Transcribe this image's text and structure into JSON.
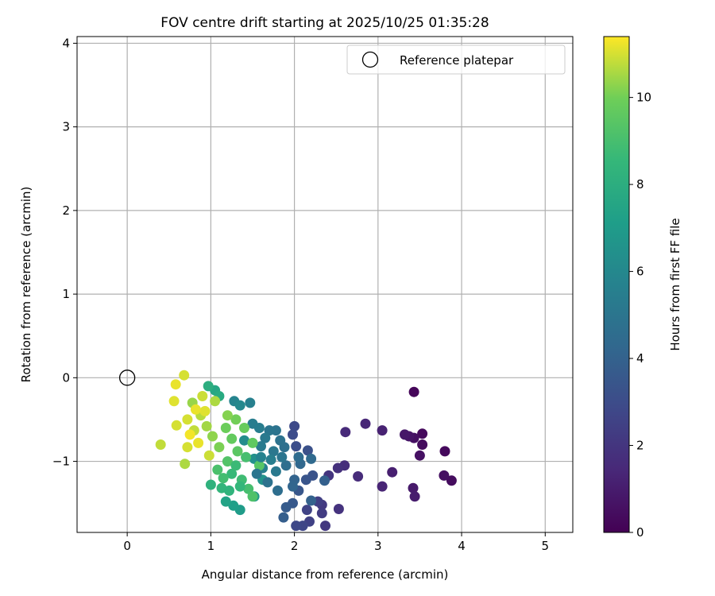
{
  "chart_data": {
    "type": "scatter",
    "title": "FOV centre drift starting at 2025/10/25 01:35:28",
    "xlabel": "Angular distance from reference (arcmin)",
    "ylabel": "Rotation from reference (arcmin)",
    "xlim": [
      -0.6,
      5.33
    ],
    "ylim": [
      -1.85,
      4.08
    ],
    "xticks": [
      0,
      1,
      2,
      3,
      4,
      5
    ],
    "yticks": [
      -1,
      0,
      1,
      2,
      3,
      4
    ],
    "xtick_labels": [
      "0",
      "1",
      "2",
      "3",
      "4",
      "5"
    ],
    "ytick_labels": [
      "−1",
      "0",
      "1",
      "2",
      "3",
      "4"
    ],
    "grid": true,
    "legend": {
      "placement": "top-right",
      "entries": [
        "Reference platepar"
      ]
    },
    "reference_point": {
      "x": 0,
      "y": 0,
      "label": "Reference platepar"
    },
    "colorbar": {
      "label": "Hours from first FF file",
      "colormap": "viridis",
      "range": [
        0,
        11.4
      ],
      "ticks": [
        0,
        2,
        4,
        6,
        8,
        10
      ],
      "tick_labels": [
        "0",
        "2",
        "4",
        "6",
        "8",
        "10"
      ]
    },
    "points": [
      [
        3.43,
        -0.17,
        0.2
      ],
      [
        3.8,
        -0.88,
        0.3
      ],
      [
        3.88,
        -1.23,
        0.4
      ],
      [
        3.79,
        -1.17,
        0.5
      ],
      [
        3.53,
        -0.67,
        0.3
      ],
      [
        3.53,
        -0.8,
        0.4
      ],
      [
        3.43,
        -0.72,
        0.5
      ],
      [
        3.5,
        -0.93,
        0.6
      ],
      [
        3.37,
        -0.7,
        0.7
      ],
      [
        3.32,
        -0.68,
        0.8
      ],
      [
        3.42,
        -1.32,
        0.9
      ],
      [
        3.44,
        -1.42,
        1.0
      ],
      [
        3.17,
        -1.13,
        1.1
      ],
      [
        3.05,
        -0.63,
        1.2
      ],
      [
        3.05,
        -1.3,
        1.3
      ],
      [
        2.85,
        -0.55,
        1.4
      ],
      [
        2.61,
        -0.65,
        1.5
      ],
      [
        2.76,
        -1.18,
        1.6
      ],
      [
        2.6,
        -1.05,
        1.7
      ],
      [
        2.52,
        -1.08,
        1.8
      ],
      [
        2.53,
        -1.57,
        1.9
      ],
      [
        2.41,
        -1.17,
        2.0
      ],
      [
        2.37,
        -1.77,
        2.1
      ],
      [
        2.33,
        -1.52,
        2.2
      ],
      [
        2.33,
        -1.62,
        2.3
      ],
      [
        2.28,
        -1.48,
        2.4
      ],
      [
        2.18,
        -1.72,
        2.5
      ],
      [
        2.15,
        -1.58,
        2.6
      ],
      [
        2.1,
        -1.77,
        2.7
      ],
      [
        2.02,
        -1.77,
        2.8
      ],
      [
        2.0,
        -0.58,
        2.9
      ],
      [
        1.98,
        -0.68,
        3.0
      ],
      [
        2.02,
        -0.82,
        3.1
      ],
      [
        2.16,
        -0.87,
        3.2
      ],
      [
        2.22,
        -1.17,
        3.3
      ],
      [
        2.14,
        -1.22,
        3.4
      ],
      [
        2.05,
        -1.35,
        3.5
      ],
      [
        1.98,
        -1.5,
        3.6
      ],
      [
        1.9,
        -1.55,
        3.7
      ],
      [
        1.87,
        -1.67,
        3.8
      ],
      [
        2.36,
        -1.23,
        3.9
      ],
      [
        2.2,
        -1.47,
        4.0
      ],
      [
        2.0,
        -1.22,
        4.1
      ],
      [
        1.98,
        -1.3,
        4.2
      ],
      [
        2.07,
        -1.03,
        4.3
      ],
      [
        2.2,
        -0.97,
        4.4
      ],
      [
        2.05,
        -0.95,
        4.5
      ],
      [
        1.9,
        -1.05,
        4.6
      ],
      [
        1.88,
        -0.83,
        4.7
      ],
      [
        1.83,
        -0.75,
        4.8
      ],
      [
        1.78,
        -0.63,
        4.9
      ],
      [
        1.7,
        -0.63,
        5.0
      ],
      [
        1.75,
        -0.88,
        5.1
      ],
      [
        1.65,
        -0.72,
        5.2
      ],
      [
        1.6,
        -0.82,
        5.3
      ],
      [
        1.58,
        -0.6,
        5.4
      ],
      [
        1.72,
        -0.98,
        5.5
      ],
      [
        1.62,
        -1.08,
        5.6
      ],
      [
        1.5,
        -0.55,
        5.4
      ],
      [
        1.47,
        -0.3,
        5.6
      ],
      [
        1.28,
        -0.28,
        5.8
      ],
      [
        1.35,
        -0.33,
        6.0
      ],
      [
        1.4,
        -0.75,
        6.2
      ],
      [
        1.52,
        -0.97,
        6.4
      ],
      [
        1.62,
        -1.22,
        6.6
      ],
      [
        1.52,
        -1.42,
        6.8
      ],
      [
        1.35,
        -1.58,
        7.0
      ],
      [
        1.27,
        -1.53,
        7.2
      ],
      [
        1.18,
        -1.48,
        7.4
      ],
      [
        1.05,
        -0.15,
        7.6
      ],
      [
        1.1,
        -0.22,
        7.8
      ],
      [
        0.97,
        -0.1,
        8.0
      ],
      [
        1.0,
        -1.28,
        8.2
      ],
      [
        1.13,
        -1.32,
        8.4
      ],
      [
        1.25,
        -1.15,
        8.6
      ],
      [
        1.37,
        -1.22,
        8.8
      ],
      [
        1.45,
        -1.33,
        9.0
      ],
      [
        1.5,
        -1.42,
        9.2
      ],
      [
        1.58,
        -1.05,
        9.4
      ],
      [
        1.5,
        -0.78,
        9.6
      ],
      [
        1.4,
        -0.6,
        9.8
      ],
      [
        1.3,
        -0.5,
        10.0
      ],
      [
        1.2,
        -0.45,
        10.2
      ],
      [
        0.78,
        -0.3,
        10.4
      ],
      [
        0.68,
        0.03,
        11.0
      ],
      [
        0.58,
        -0.08,
        11.2
      ],
      [
        0.56,
        -0.28,
        11.1
      ],
      [
        0.59,
        -0.57,
        11.0
      ],
      [
        0.4,
        -0.8,
        10.8
      ],
      [
        0.69,
        -1.03,
        10.6
      ],
      [
        0.72,
        -0.5,
        11.0
      ],
      [
        0.8,
        -0.63,
        10.8
      ],
      [
        0.88,
        -0.45,
        10.7
      ],
      [
        0.95,
        -0.58,
        10.5
      ],
      [
        1.02,
        -0.7,
        10.3
      ],
      [
        1.1,
        -0.83,
        10.1
      ],
      [
        0.93,
        -0.4,
        11.1
      ],
      [
        1.18,
        -0.6,
        9.9
      ],
      [
        1.25,
        -0.73,
        9.7
      ],
      [
        1.32,
        -0.88,
        9.5
      ],
      [
        1.2,
        -1.0,
        9.3
      ],
      [
        1.08,
        -1.1,
        9.1
      ],
      [
        0.98,
        -0.93,
        10.9
      ],
      [
        0.85,
        -0.78,
        11.2
      ],
      [
        0.75,
        -0.68,
        11.3
      ],
      [
        0.72,
        -0.83,
        11.0
      ],
      [
        1.15,
        -1.2,
        8.9
      ],
      [
        1.3,
        -1.05,
        8.7
      ],
      [
        1.42,
        -0.95,
        9.0
      ],
      [
        1.35,
        -1.3,
        8.5
      ],
      [
        1.22,
        -1.35,
        8.3
      ],
      [
        1.05,
        -0.28,
        10.6
      ],
      [
        0.9,
        -0.22,
        10.9
      ],
      [
        0.82,
        -0.38,
        11.2
      ],
      [
        1.55,
        -1.15,
        5.0
      ],
      [
        1.68,
        -1.25,
        4.8
      ],
      [
        1.8,
        -1.35,
        4.6
      ],
      [
        1.78,
        -1.12,
        5.2
      ],
      [
        1.85,
        -0.95,
        5.0
      ],
      [
        1.6,
        -0.95,
        5.7
      ]
    ]
  }
}
